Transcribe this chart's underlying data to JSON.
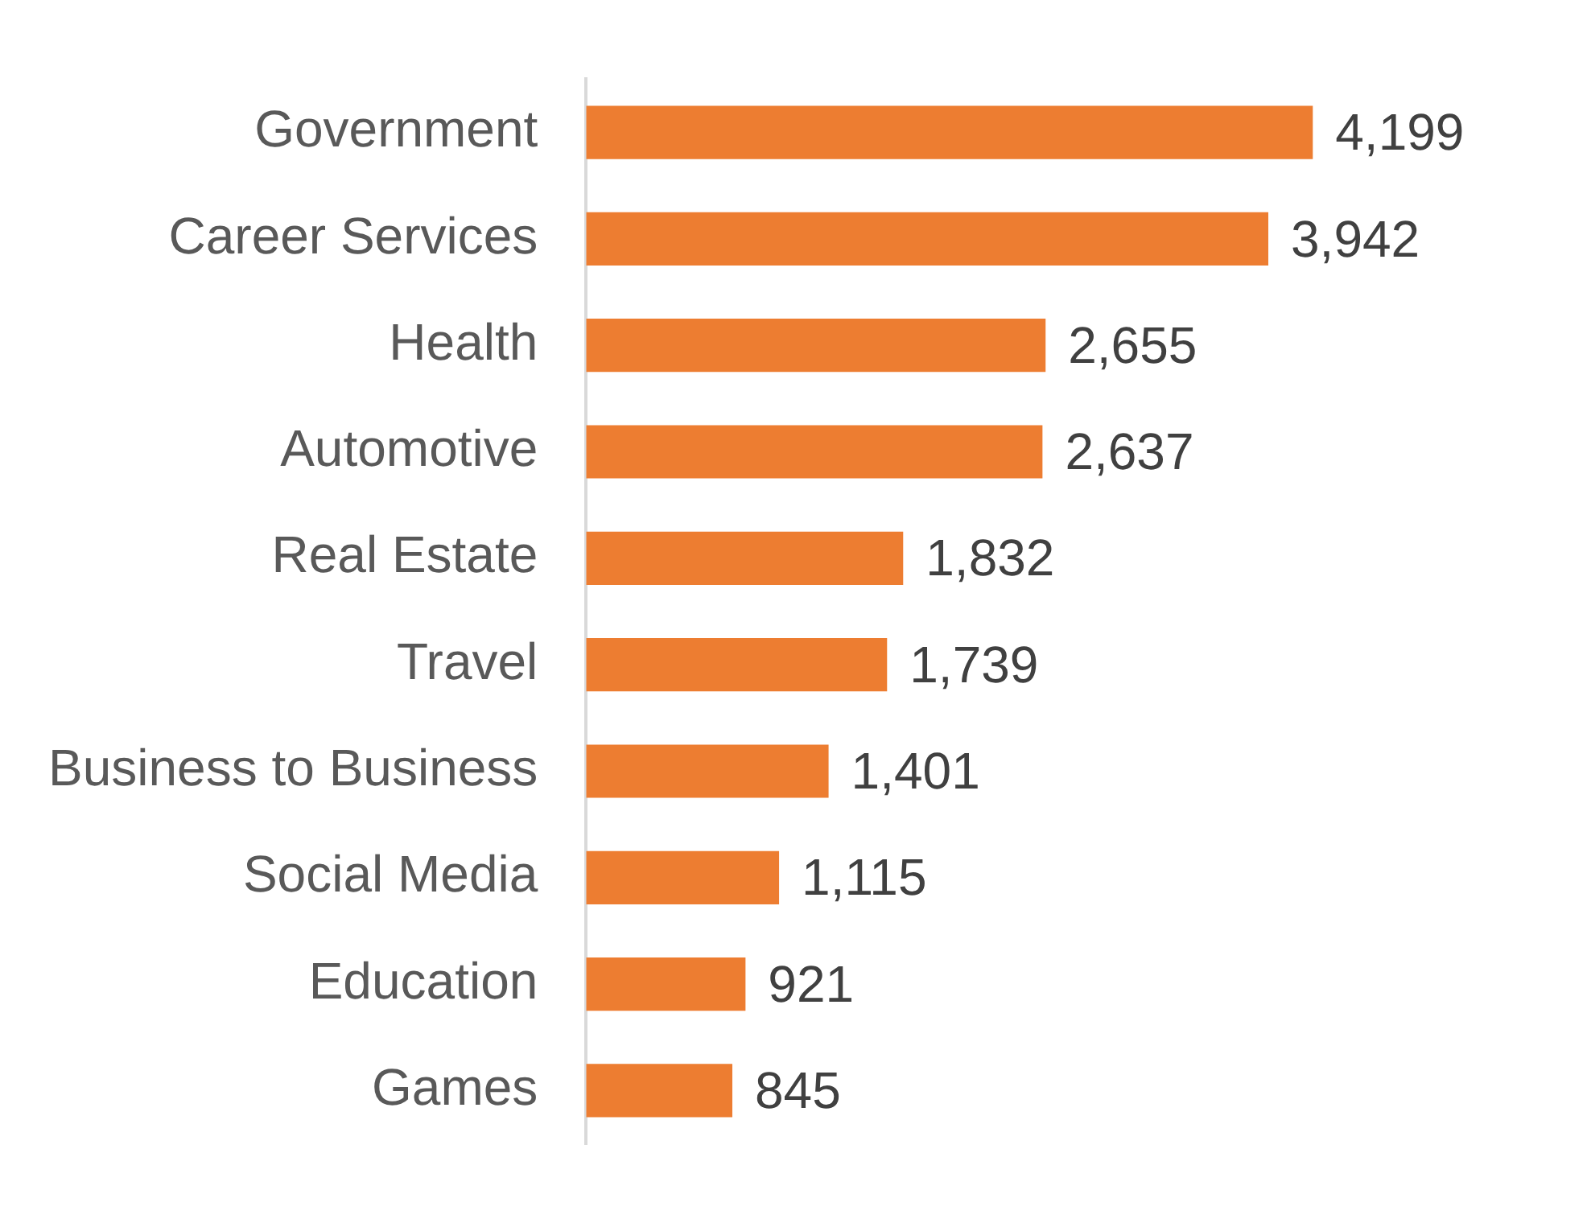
{
  "chart_data": {
    "type": "bar",
    "orientation": "horizontal",
    "categories": [
      "Government",
      "Career Services",
      "Health",
      "Automotive",
      "Real Estate",
      "Travel",
      "Business to Business",
      "Social Media",
      "Education",
      "Games"
    ],
    "values": [
      4199,
      3942,
      2655,
      2637,
      1832,
      1739,
      1401,
      1115,
      921,
      845
    ],
    "value_labels": [
      "4,199",
      "3,942",
      "2,655",
      "2,637",
      "1,832",
      "1,739",
      "1,401",
      "1,115",
      "921",
      "845"
    ],
    "color": "#ed7d31",
    "legend": false
  }
}
